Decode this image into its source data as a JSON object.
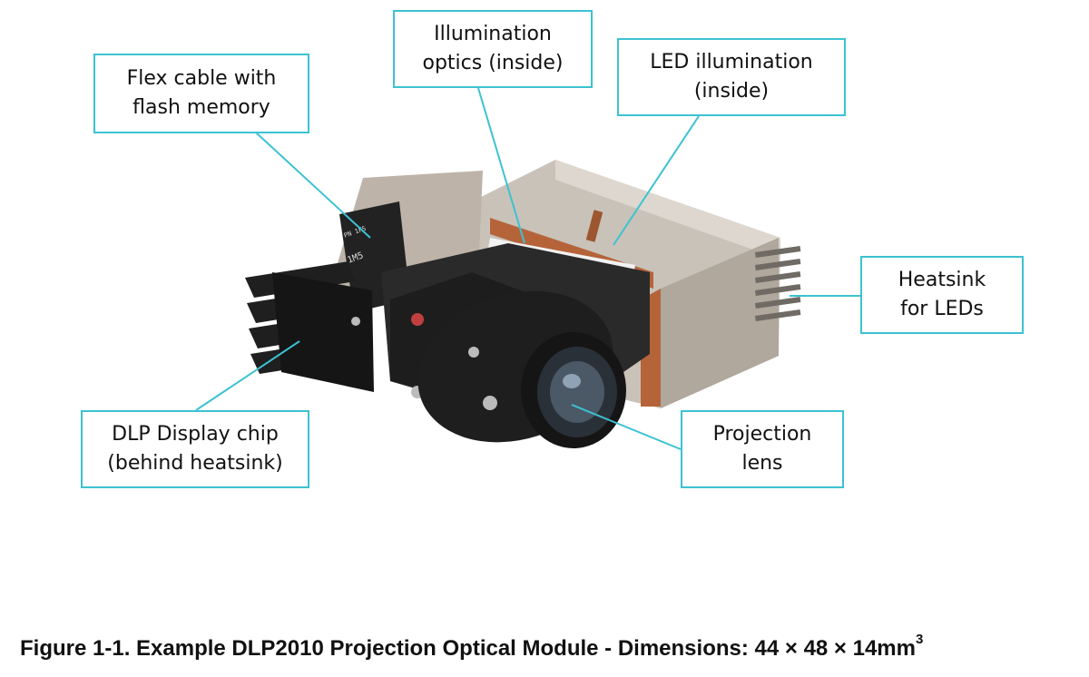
{
  "callouts": {
    "flex_cable": [
      "Flex cable with",
      "flash memory"
    ],
    "illumination_optics": [
      "Illumination",
      "optics (inside)"
    ],
    "led_illumination": [
      "LED illumination",
      "(inside)"
    ],
    "heatsink_leds": [
      "Heatsink",
      "for LEDs"
    ],
    "dlp_chip": [
      "DLP Display chip",
      "(behind heatsink)"
    ],
    "projection_lens": [
      "Projection",
      "lens"
    ]
  },
  "caption": {
    "text": "Figure 1-1. Example DLP2010 Projection Optical Module - Dimensions: 44 × 48 × 14mm",
    "superscript": "3"
  },
  "colors": {
    "callout_border": "#3cc2d2",
    "leader_line": "#3cc2d2",
    "module_metal": "#bfb6ad",
    "module_black": "#1e1e1e",
    "copper": "#b5643a"
  }
}
